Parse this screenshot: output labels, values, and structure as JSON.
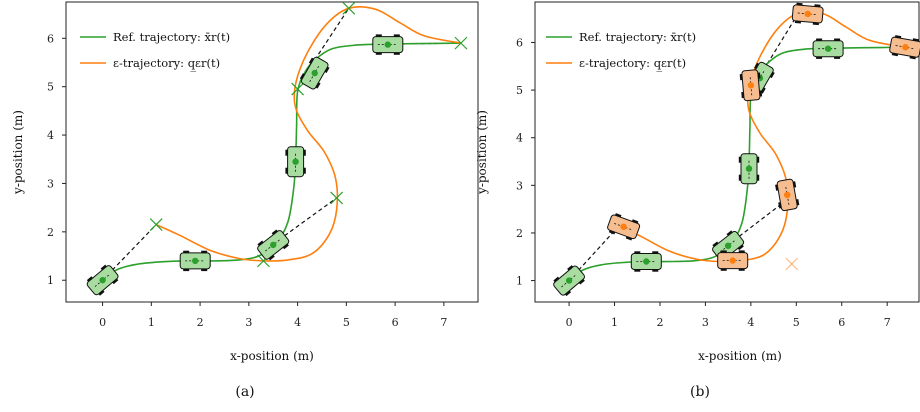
{
  "colors": {
    "reference": "#2ca02c",
    "epsilon": "#ff7f0e",
    "car_green_fill": "#a8dca0",
    "car_orange_fill": "#f6be90",
    "car_outline": "#111111",
    "connector": "#111111",
    "frame": "#222222"
  },
  "chart_data": [
    {
      "type": "line",
      "caption": "(a)",
      "xlabel": "x-position (m)",
      "ylabel": "y-position (m)",
      "xlim": [
        -0.75,
        7.7
      ],
      "ylim": [
        0.55,
        6.75
      ],
      "xticks": [
        0,
        1,
        2,
        3,
        4,
        5,
        6,
        7
      ],
      "yticks": [
        1,
        2,
        3,
        4,
        5,
        6
      ],
      "legend_position": "top-left",
      "series": [
        {
          "name": "Ref. trajectory: x̄r(t)",
          "color": "#2ca02c",
          "points": [
            [
              0,
              1
            ],
            [
              0.3,
              1.22
            ],
            [
              0.7,
              1.33
            ],
            [
              1.2,
              1.38
            ],
            [
              1.7,
              1.4
            ],
            [
              2.3,
              1.4
            ],
            [
              2.8,
              1.42
            ],
            [
              3.2,
              1.5
            ],
            [
              3.55,
              1.75
            ],
            [
              3.8,
              2.2
            ],
            [
              3.92,
              2.9
            ],
            [
              3.96,
              3.5
            ],
            [
              3.98,
              4.2
            ],
            [
              4.0,
              4.9
            ],
            [
              4.15,
              5.3
            ],
            [
              4.35,
              5.55
            ],
            [
              4.7,
              5.78
            ],
            [
              5.2,
              5.86
            ],
            [
              5.8,
              5.88
            ],
            [
              6.5,
              5.89
            ],
            [
              7.35,
              5.9
            ]
          ]
        },
        {
          "name": "ε-trajectory: q̲εr(t)",
          "color": "#ff7f0e",
          "points": [
            [
              1.1,
              2.15
            ],
            [
              1.6,
              1.92
            ],
            [
              2.2,
              1.62
            ],
            [
              2.8,
              1.45
            ],
            [
              3.3,
              1.4
            ],
            [
              3.8,
              1.42
            ],
            [
              4.3,
              1.55
            ],
            [
              4.65,
              1.95
            ],
            [
              4.8,
              2.45
            ],
            [
              4.78,
              3.1
            ],
            [
              4.55,
              3.65
            ],
            [
              4.2,
              4.1
            ],
            [
              3.95,
              4.6
            ],
            [
              3.97,
              5.1
            ],
            [
              4.2,
              5.7
            ],
            [
              4.6,
              6.3
            ],
            [
              5.05,
              6.62
            ],
            [
              5.6,
              6.6
            ],
            [
              6.1,
              6.32
            ],
            [
              6.6,
              6.05
            ],
            [
              7.35,
              5.9
            ]
          ]
        }
      ],
      "markers": [
        [
          1.1,
          2.15
        ],
        [
          3.3,
          1.4
        ],
        [
          4.8,
          2.7
        ],
        [
          4.0,
          4.95
        ],
        [
          5.05,
          6.62
        ],
        [
          7.35,
          5.9
        ]
      ],
      "connectors": [
        [
          [
            0,
            1
          ],
          [
            1.1,
            2.15
          ]
        ],
        [
          [
            3.5,
            1.75
          ],
          [
            4.8,
            2.7
          ]
        ],
        [
          [
            4.35,
            5.55
          ],
          [
            5.05,
            6.62
          ]
        ],
        [
          [
            5.8,
            5.88
          ],
          [
            7.35,
            5.9
          ]
        ]
      ],
      "cars": [
        {
          "x": 0.0,
          "y": 1.0,
          "heading": 40,
          "kind": "green"
        },
        {
          "x": 1.9,
          "y": 1.4,
          "heading": 0,
          "kind": "green"
        },
        {
          "x": 3.5,
          "y": 1.73,
          "heading": 38,
          "kind": "green"
        },
        {
          "x": 3.96,
          "y": 3.45,
          "heading": 90,
          "kind": "green"
        },
        {
          "x": 4.35,
          "y": 5.28,
          "heading": 60,
          "kind": "green"
        },
        {
          "x": 5.85,
          "y": 5.87,
          "heading": 0,
          "kind": "green"
        }
      ]
    },
    {
      "type": "line",
      "caption": "(b)",
      "xlabel": "x-position (m)",
      "ylabel": "y-position (m)",
      "xlim": [
        -0.75,
        7.7
      ],
      "ylim": [
        0.55,
        6.85
      ],
      "xticks": [
        0,
        1,
        2,
        3,
        4,
        5,
        6,
        7
      ],
      "yticks": [
        1,
        2,
        3,
        4,
        5,
        6
      ],
      "legend_position": "top-left",
      "series": [
        {
          "name": "Ref. trajectory: x̄r(t)",
          "color": "#2ca02c",
          "points": [
            [
              0,
              1
            ],
            [
              0.3,
              1.22
            ],
            [
              0.7,
              1.33
            ],
            [
              1.2,
              1.38
            ],
            [
              1.7,
              1.4
            ],
            [
              2.3,
              1.4
            ],
            [
              2.8,
              1.42
            ],
            [
              3.2,
              1.5
            ],
            [
              3.55,
              1.75
            ],
            [
              3.8,
              2.2
            ],
            [
              3.92,
              2.9
            ],
            [
              3.96,
              3.5
            ],
            [
              3.98,
              4.2
            ],
            [
              4.0,
              4.9
            ],
            [
              4.15,
              5.3
            ],
            [
              4.35,
              5.55
            ],
            [
              4.7,
              5.78
            ],
            [
              5.2,
              5.86
            ],
            [
              5.8,
              5.88
            ],
            [
              6.5,
              5.89
            ],
            [
              7.35,
              5.9
            ]
          ]
        },
        {
          "name": "ε-trajectory: q̲εr(t)",
          "color": "#ff7f0e",
          "points": [
            [
              1.1,
              2.15
            ],
            [
              1.6,
              1.92
            ],
            [
              2.2,
              1.62
            ],
            [
              2.8,
              1.45
            ],
            [
              3.3,
              1.4
            ],
            [
              3.8,
              1.42
            ],
            [
              4.3,
              1.55
            ],
            [
              4.65,
              1.95
            ],
            [
              4.8,
              2.45
            ],
            [
              4.78,
              3.1
            ],
            [
              4.55,
              3.65
            ],
            [
              4.2,
              4.1
            ],
            [
              3.95,
              4.6
            ],
            [
              3.97,
              5.1
            ],
            [
              4.2,
              5.7
            ],
            [
              4.6,
              6.3
            ],
            [
              5.05,
              6.62
            ],
            [
              5.6,
              6.6
            ],
            [
              6.1,
              6.32
            ],
            [
              6.6,
              6.05
            ],
            [
              7.35,
              5.9
            ]
          ]
        }
      ],
      "markers": [
        [
          4.9,
          1.35
        ]
      ],
      "connectors": [
        [
          [
            0,
            1
          ],
          [
            1.1,
            2.15
          ]
        ],
        [
          [
            3.5,
            1.75
          ],
          [
            4.8,
            2.7
          ]
        ],
        [
          [
            4.2,
            5.3
          ],
          [
            5.05,
            6.62
          ]
        ],
        [
          [
            3.3,
            1.4
          ],
          [
            3.8,
            1.42
          ]
        ]
      ],
      "cars": [
        {
          "x": 0.0,
          "y": 1.0,
          "heading": 40,
          "kind": "green"
        },
        {
          "x": 1.7,
          "y": 1.4,
          "heading": 0,
          "kind": "green"
        },
        {
          "x": 3.5,
          "y": 1.73,
          "heading": 38,
          "kind": "green"
        },
        {
          "x": 3.96,
          "y": 3.35,
          "heading": 90,
          "kind": "green"
        },
        {
          "x": 4.2,
          "y": 5.25,
          "heading": 60,
          "kind": "green"
        },
        {
          "x": 5.7,
          "y": 5.87,
          "heading": 0,
          "kind": "green"
        },
        {
          "x": 1.2,
          "y": 2.13,
          "heading": -20,
          "kind": "orange"
        },
        {
          "x": 3.6,
          "y": 1.42,
          "heading": 0,
          "kind": "orange"
        },
        {
          "x": 4.8,
          "y": 2.8,
          "heading": 100,
          "kind": "orange"
        },
        {
          "x": 4.0,
          "y": 5.1,
          "heading": 95,
          "kind": "orange"
        },
        {
          "x": 5.25,
          "y": 6.6,
          "heading": -5,
          "kind": "orange"
        },
        {
          "x": 7.4,
          "y": 5.9,
          "heading": -10,
          "kind": "orange"
        }
      ]
    }
  ]
}
